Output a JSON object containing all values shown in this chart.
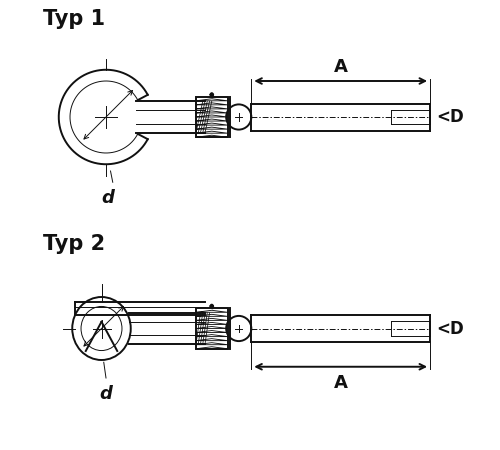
{
  "bg_color": "#ffffff",
  "line_color": "#111111",
  "title1": "Typ 1",
  "title2": "Typ 2",
  "label_A": "A",
  "label_d": "d",
  "label_D": "<D",
  "title_fontsize": 15,
  "label_fontsize": 12
}
